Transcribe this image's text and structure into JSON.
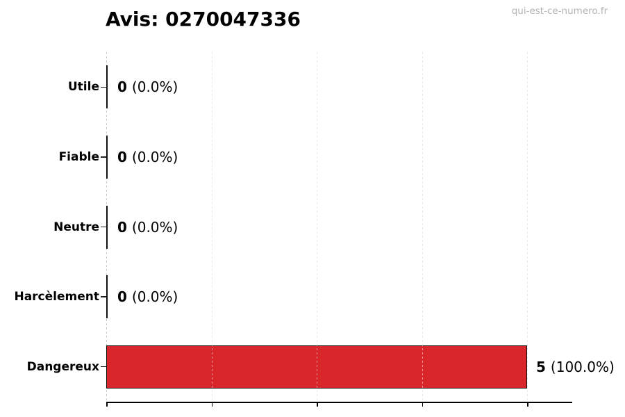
{
  "header": {
    "title": "Avis: 0270047336",
    "watermark": "qui-est-ce-numero.fr"
  },
  "colors": {
    "background": "#ffffff",
    "bar_fill": "#d9262b",
    "bar_edge": "#111111",
    "grid": "#cccccc",
    "axis": "#000000",
    "text": "#000000",
    "watermark": "#b3b3b3"
  },
  "chart_data": {
    "type": "bar",
    "orientation": "horizontal",
    "title": "Avis: 0270047336",
    "categories": [
      "Utile",
      "Fiable",
      "Neutre",
      "Harcèlement",
      "Dangereux"
    ],
    "values": [
      0,
      0,
      0,
      0,
      5
    ],
    "counts_display": [
      "0",
      "0",
      "0",
      "0",
      "5"
    ],
    "percents_display": [
      "(0.0%)",
      "(0.0%)",
      "(0.0%)",
      "(0.0%)",
      "(100.0%)"
    ],
    "total": 5,
    "xlim": [
      0,
      5.5
    ],
    "xticks": [
      0,
      1.25,
      2.5,
      3.75,
      5
    ],
    "grid": true,
    "legend_position": "none",
    "bar_color": "#d9262b",
    "xlabel": "",
    "ylabel": ""
  }
}
